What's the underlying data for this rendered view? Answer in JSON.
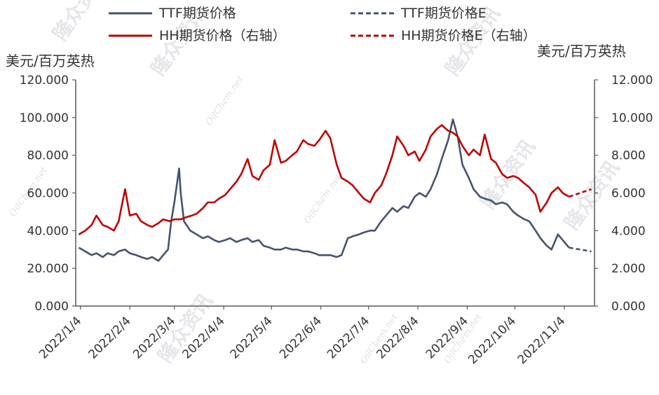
{
  "chart_data": {
    "type": "line",
    "x_dates": [
      "2022/1/4",
      "2022/2/4",
      "2022/3/4",
      "2022/4/4",
      "2022/5/4",
      "2022/6/4",
      "2022/7/4",
      "2022/8/4",
      "2022/9/4",
      "2022/10/4",
      "2022/11/4"
    ],
    "left_axis": {
      "unit": "美元/百万英热",
      "ylim": [
        0,
        120
      ],
      "ticks": [
        "0.000",
        "20.000",
        "40.000",
        "60.000",
        "80.000",
        "100.000",
        "120.000"
      ]
    },
    "right_axis": {
      "unit": "美元/百万英热",
      "ylim": [
        0,
        12
      ],
      "ticks": [
        "0.000",
        "2.000",
        "4.000",
        "6.000",
        "8.000",
        "10.000",
        "12.000"
      ]
    },
    "legend": [
      {
        "label": "TTF期货价格",
        "color": "#44546a",
        "style": "solid"
      },
      {
        "label": "TTF期货价格E",
        "color": "#44546a",
        "style": "dashed"
      },
      {
        "label": "HH期货价格（右轴）",
        "color": "#c00000",
        "style": "solid"
      },
      {
        "label": "HH期货价格E（右轴）",
        "color": "#c00000",
        "style": "dashed"
      }
    ],
    "series": [
      {
        "name": "TTF期货价格",
        "axis": "left",
        "color": "#44546a",
        "style": "solid",
        "points": [
          [
            "2022/1/3",
            31
          ],
          [
            "2022/1/7",
            29
          ],
          [
            "2022/1/11",
            27
          ],
          [
            "2022/1/14",
            28
          ],
          [
            "2022/1/18",
            26
          ],
          [
            "2022/1/21",
            28
          ],
          [
            "2022/1/25",
            27
          ],
          [
            "2022/1/28",
            29
          ],
          [
            "2022/2/1",
            30
          ],
          [
            "2022/2/4",
            28
          ],
          [
            "2022/2/8",
            27
          ],
          [
            "2022/2/11",
            26
          ],
          [
            "2022/2/15",
            25
          ],
          [
            "2022/2/18",
            26
          ],
          [
            "2022/2/22",
            24
          ],
          [
            "2022/2/25",
            27
          ],
          [
            "2022/2/28",
            30
          ],
          [
            "2022/3/2",
            45
          ],
          [
            "2022/3/4",
            55
          ],
          [
            "2022/3/7",
            73
          ],
          [
            "2022/3/8",
            60
          ],
          [
            "2022/3/10",
            45
          ],
          [
            "2022/3/14",
            40
          ],
          [
            "2022/3/18",
            38
          ],
          [
            "2022/3/22",
            36
          ],
          [
            "2022/3/25",
            37
          ],
          [
            "2022/3/29",
            35
          ],
          [
            "2022/4/1",
            34
          ],
          [
            "2022/4/5",
            35
          ],
          [
            "2022/4/8",
            36
          ],
          [
            "2022/4/12",
            34
          ],
          [
            "2022/4/15",
            35
          ],
          [
            "2022/4/19",
            36
          ],
          [
            "2022/4/22",
            34
          ],
          [
            "2022/4/26",
            35
          ],
          [
            "2022/4/29",
            32
          ],
          [
            "2022/5/3",
            31
          ],
          [
            "2022/5/6",
            30
          ],
          [
            "2022/5/10",
            30
          ],
          [
            "2022/5/13",
            31
          ],
          [
            "2022/5/17",
            30
          ],
          [
            "2022/5/20",
            30
          ],
          [
            "2022/5/24",
            29
          ],
          [
            "2022/5/27",
            29
          ],
          [
            "2022/5/31",
            28
          ],
          [
            "2022/6/3",
            27
          ],
          [
            "2022/6/7",
            27
          ],
          [
            "2022/6/10",
            27
          ],
          [
            "2022/6/14",
            26
          ],
          [
            "2022/6/17",
            27
          ],
          [
            "2022/6/21",
            36
          ],
          [
            "2022/6/24",
            37
          ],
          [
            "2022/6/28",
            38
          ],
          [
            "2022/7/1",
            39
          ],
          [
            "2022/7/5",
            40
          ],
          [
            "2022/7/8",
            40
          ],
          [
            "2022/7/12",
            45
          ],
          [
            "2022/7/15",
            48
          ],
          [
            "2022/7/19",
            52
          ],
          [
            "2022/7/22",
            50
          ],
          [
            "2022/7/26",
            53
          ],
          [
            "2022/7/29",
            52
          ],
          [
            "2022/8/2",
            58
          ],
          [
            "2022/8/5",
            60
          ],
          [
            "2022/8/9",
            58
          ],
          [
            "2022/8/12",
            62
          ],
          [
            "2022/8/16",
            70
          ],
          [
            "2022/8/19",
            78
          ],
          [
            "2022/8/23",
            88
          ],
          [
            "2022/8/26",
            99
          ],
          [
            "2022/8/29",
            90
          ],
          [
            "2022/9/1",
            75
          ],
          [
            "2022/9/5",
            68
          ],
          [
            "2022/9/8",
            62
          ],
          [
            "2022/9/12",
            58
          ],
          [
            "2022/9/15",
            57
          ],
          [
            "2022/9/19",
            56
          ],
          [
            "2022/9/22",
            54
          ],
          [
            "2022/9/26",
            55
          ],
          [
            "2022/9/29",
            54
          ],
          [
            "2022/10/3",
            50
          ],
          [
            "2022/10/6",
            48
          ],
          [
            "2022/10/10",
            46
          ],
          [
            "2022/10/13",
            45
          ],
          [
            "2022/10/17",
            40
          ],
          [
            "2022/10/20",
            36
          ],
          [
            "2022/10/24",
            32
          ],
          [
            "2022/10/27",
            30
          ],
          [
            "2022/10/31",
            38
          ],
          [
            "2022/11/3",
            35
          ],
          [
            "2022/11/7",
            31
          ]
        ]
      },
      {
        "name": "TTF期货价格E",
        "axis": "left",
        "color": "#44546a",
        "style": "dashed",
        "points": [
          [
            "2022/11/7",
            31
          ],
          [
            "2022/11/14",
            30
          ],
          [
            "2022/11/21",
            29
          ]
        ]
      },
      {
        "name": "HH期货价格（右轴）",
        "axis": "right",
        "color": "#c00000",
        "style": "solid",
        "points": [
          [
            "2022/1/3",
            3.8
          ],
          [
            "2022/1/7",
            4.0
          ],
          [
            "2022/1/11",
            4.3
          ],
          [
            "2022/1/14",
            4.8
          ],
          [
            "2022/1/18",
            4.3
          ],
          [
            "2022/1/21",
            4.2
          ],
          [
            "2022/1/25",
            4.0
          ],
          [
            "2022/1/28",
            4.5
          ],
          [
            "2022/2/1",
            6.2
          ],
          [
            "2022/2/4",
            4.8
          ],
          [
            "2022/2/8",
            4.9
          ],
          [
            "2022/2/11",
            4.5
          ],
          [
            "2022/2/15",
            4.3
          ],
          [
            "2022/2/18",
            4.2
          ],
          [
            "2022/2/22",
            4.4
          ],
          [
            "2022/2/25",
            4.6
          ],
          [
            "2022/3/1",
            4.5
          ],
          [
            "2022/3/4",
            4.6
          ],
          [
            "2022/3/8",
            4.6
          ],
          [
            "2022/3/11",
            4.7
          ],
          [
            "2022/3/15",
            4.8
          ],
          [
            "2022/3/18",
            4.9
          ],
          [
            "2022/3/22",
            5.2
          ],
          [
            "2022/3/25",
            5.5
          ],
          [
            "2022/3/29",
            5.5
          ],
          [
            "2022/4/1",
            5.7
          ],
          [
            "2022/4/5",
            5.9
          ],
          [
            "2022/4/8",
            6.2
          ],
          [
            "2022/4/12",
            6.6
          ],
          [
            "2022/4/15",
            7.0
          ],
          [
            "2022/4/19",
            7.8
          ],
          [
            "2022/4/22",
            6.9
          ],
          [
            "2022/4/26",
            6.7
          ],
          [
            "2022/4/29",
            7.2
          ],
          [
            "2022/5/3",
            7.5
          ],
          [
            "2022/5/6",
            8.8
          ],
          [
            "2022/5/10",
            7.6
          ],
          [
            "2022/5/13",
            7.7
          ],
          [
            "2022/5/17",
            8.0
          ],
          [
            "2022/5/20",
            8.2
          ],
          [
            "2022/5/24",
            8.8
          ],
          [
            "2022/5/27",
            8.6
          ],
          [
            "2022/5/31",
            8.5
          ],
          [
            "2022/6/3",
            8.8
          ],
          [
            "2022/6/7",
            9.3
          ],
          [
            "2022/6/10",
            8.9
          ],
          [
            "2022/6/14",
            7.5
          ],
          [
            "2022/6/17",
            6.8
          ],
          [
            "2022/6/21",
            6.6
          ],
          [
            "2022/6/24",
            6.4
          ],
          [
            "2022/6/28",
            6.0
          ],
          [
            "2022/7/1",
            5.7
          ],
          [
            "2022/7/5",
            5.5
          ],
          [
            "2022/7/8",
            6.0
          ],
          [
            "2022/7/12",
            6.4
          ],
          [
            "2022/7/15",
            7.0
          ],
          [
            "2022/7/19",
            8.0
          ],
          [
            "2022/7/22",
            9.0
          ],
          [
            "2022/7/26",
            8.5
          ],
          [
            "2022/7/29",
            8.0
          ],
          [
            "2022/8/2",
            8.2
          ],
          [
            "2022/8/5",
            7.7
          ],
          [
            "2022/8/9",
            8.3
          ],
          [
            "2022/8/12",
            9.0
          ],
          [
            "2022/8/16",
            9.4
          ],
          [
            "2022/8/19",
            9.6
          ],
          [
            "2022/8/23",
            9.3
          ],
          [
            "2022/8/26",
            9.2
          ],
          [
            "2022/8/29",
            9.0
          ],
          [
            "2022/9/1",
            8.5
          ],
          [
            "2022/9/5",
            8.0
          ],
          [
            "2022/9/8",
            8.3
          ],
          [
            "2022/9/12",
            8.0
          ],
          [
            "2022/9/15",
            9.1
          ],
          [
            "2022/9/19",
            7.8
          ],
          [
            "2022/9/22",
            7.6
          ],
          [
            "2022/9/26",
            7.0
          ],
          [
            "2022/9/29",
            6.8
          ],
          [
            "2022/10/3",
            6.9
          ],
          [
            "2022/10/6",
            6.8
          ],
          [
            "2022/10/10",
            6.5
          ],
          [
            "2022/10/13",
            6.3
          ],
          [
            "2022/10/17",
            5.9
          ],
          [
            "2022/10/20",
            5.0
          ],
          [
            "2022/10/24",
            5.5
          ],
          [
            "2022/10/27",
            6.0
          ],
          [
            "2022/10/31",
            6.3
          ],
          [
            "2022/11/3",
            6.0
          ],
          [
            "2022/11/7",
            5.8
          ]
        ]
      },
      {
        "name": "HH期货价格E（右轴）",
        "axis": "right",
        "color": "#c00000",
        "style": "dashed",
        "points": [
          [
            "2022/11/7",
            5.8
          ],
          [
            "2022/11/14",
            6.0
          ],
          [
            "2022/11/21",
            6.2
          ]
        ]
      }
    ],
    "grid": false,
    "legend_position": "top"
  },
  "watermark": {
    "brand": "隆众资讯",
    "site": "OilChem.net"
  }
}
